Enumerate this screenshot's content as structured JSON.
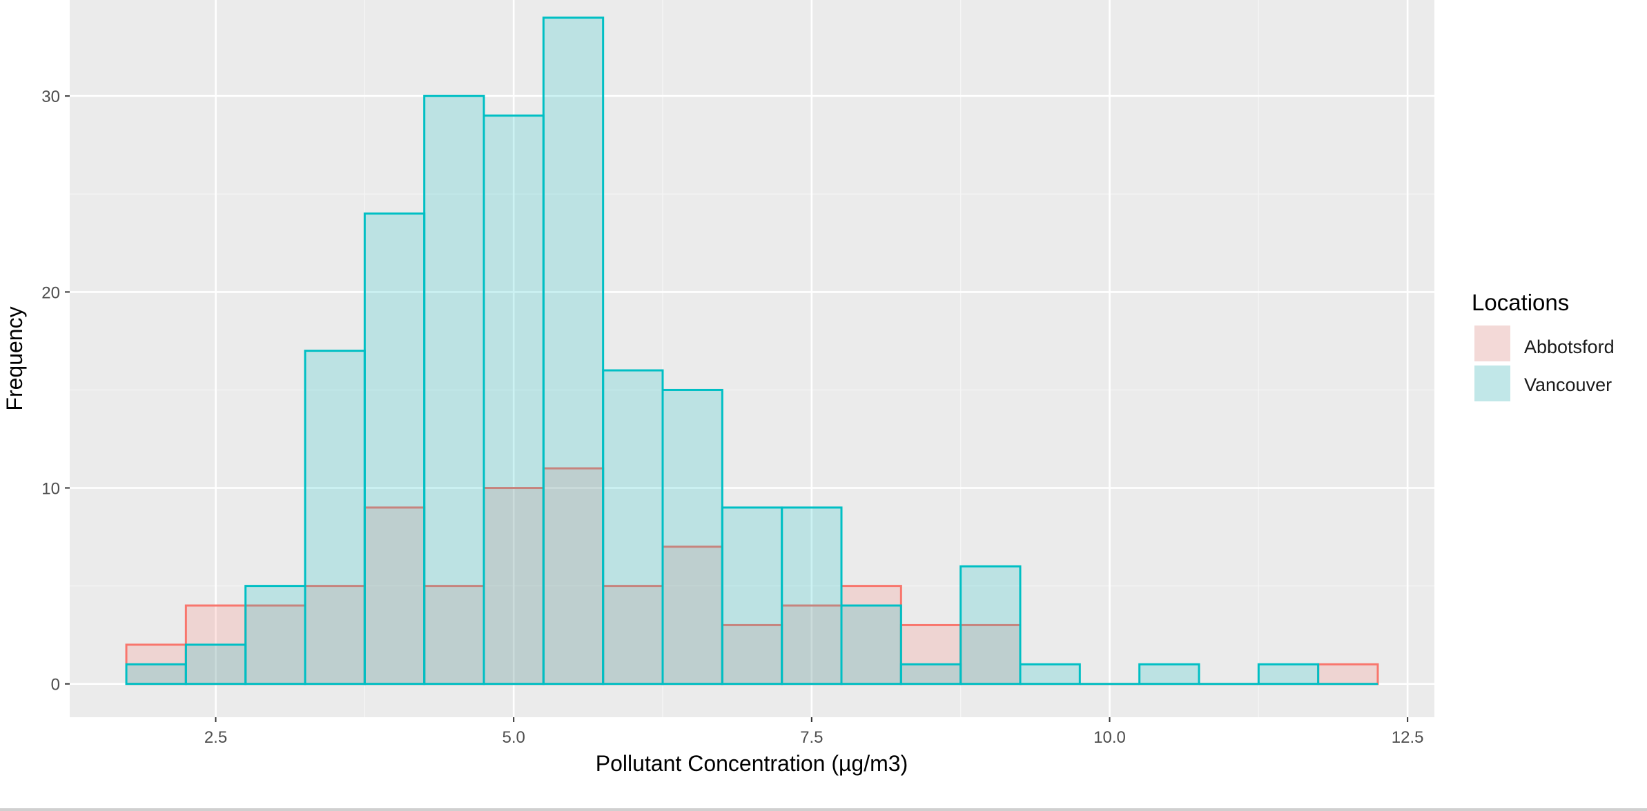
{
  "chart_data": {
    "type": "bar",
    "title": "",
    "xlabel": "Pollutant Concentration (µg/m3)",
    "ylabel": "Frequency",
    "xlim": [
      1.275,
      12.725
    ],
    "ylim": [
      -1.7,
      34.9
    ],
    "x_ticks": [
      2.5,
      5.0,
      7.5,
      10.0,
      12.5
    ],
    "x_tick_labels": [
      "2.5",
      "5.0",
      "7.5",
      "10.0",
      "12.5"
    ],
    "y_ticks": [
      0,
      10,
      20,
      30
    ],
    "y_tick_labels": [
      "0",
      "10",
      "20",
      "30"
    ],
    "grid": true,
    "bin_width": 0.5,
    "bin_left_edges": [
      1.75,
      2.25,
      2.75,
      3.25,
      3.75,
      4.25,
      4.75,
      5.25,
      5.75,
      6.25,
      6.75,
      7.25,
      7.75,
      8.25,
      8.75,
      9.25,
      9.75,
      10.25,
      10.75,
      11.25,
      11.75
    ],
    "series": [
      {
        "name": "Abbotsford",
        "color": "#F8766D",
        "fill": "rgba(248,118,109,0.2)",
        "values": [
          2,
          4,
          4,
          5,
          9,
          5,
          10,
          11,
          5,
          7,
          3,
          4,
          5,
          3,
          3,
          0,
          0,
          0,
          0,
          0,
          1
        ]
      },
      {
        "name": "Vancouver",
        "color": "#00BFC4",
        "fill": "rgba(0,191,196,0.2)",
        "values": [
          1,
          2,
          5,
          17,
          24,
          30,
          29,
          34,
          16,
          15,
          9,
          9,
          4,
          1,
          6,
          1,
          0,
          1,
          0,
          1,
          0
        ]
      }
    ],
    "legend": {
      "title": "Locations",
      "position": "right",
      "entries": [
        "Abbotsford",
        "Vancouver"
      ]
    }
  }
}
